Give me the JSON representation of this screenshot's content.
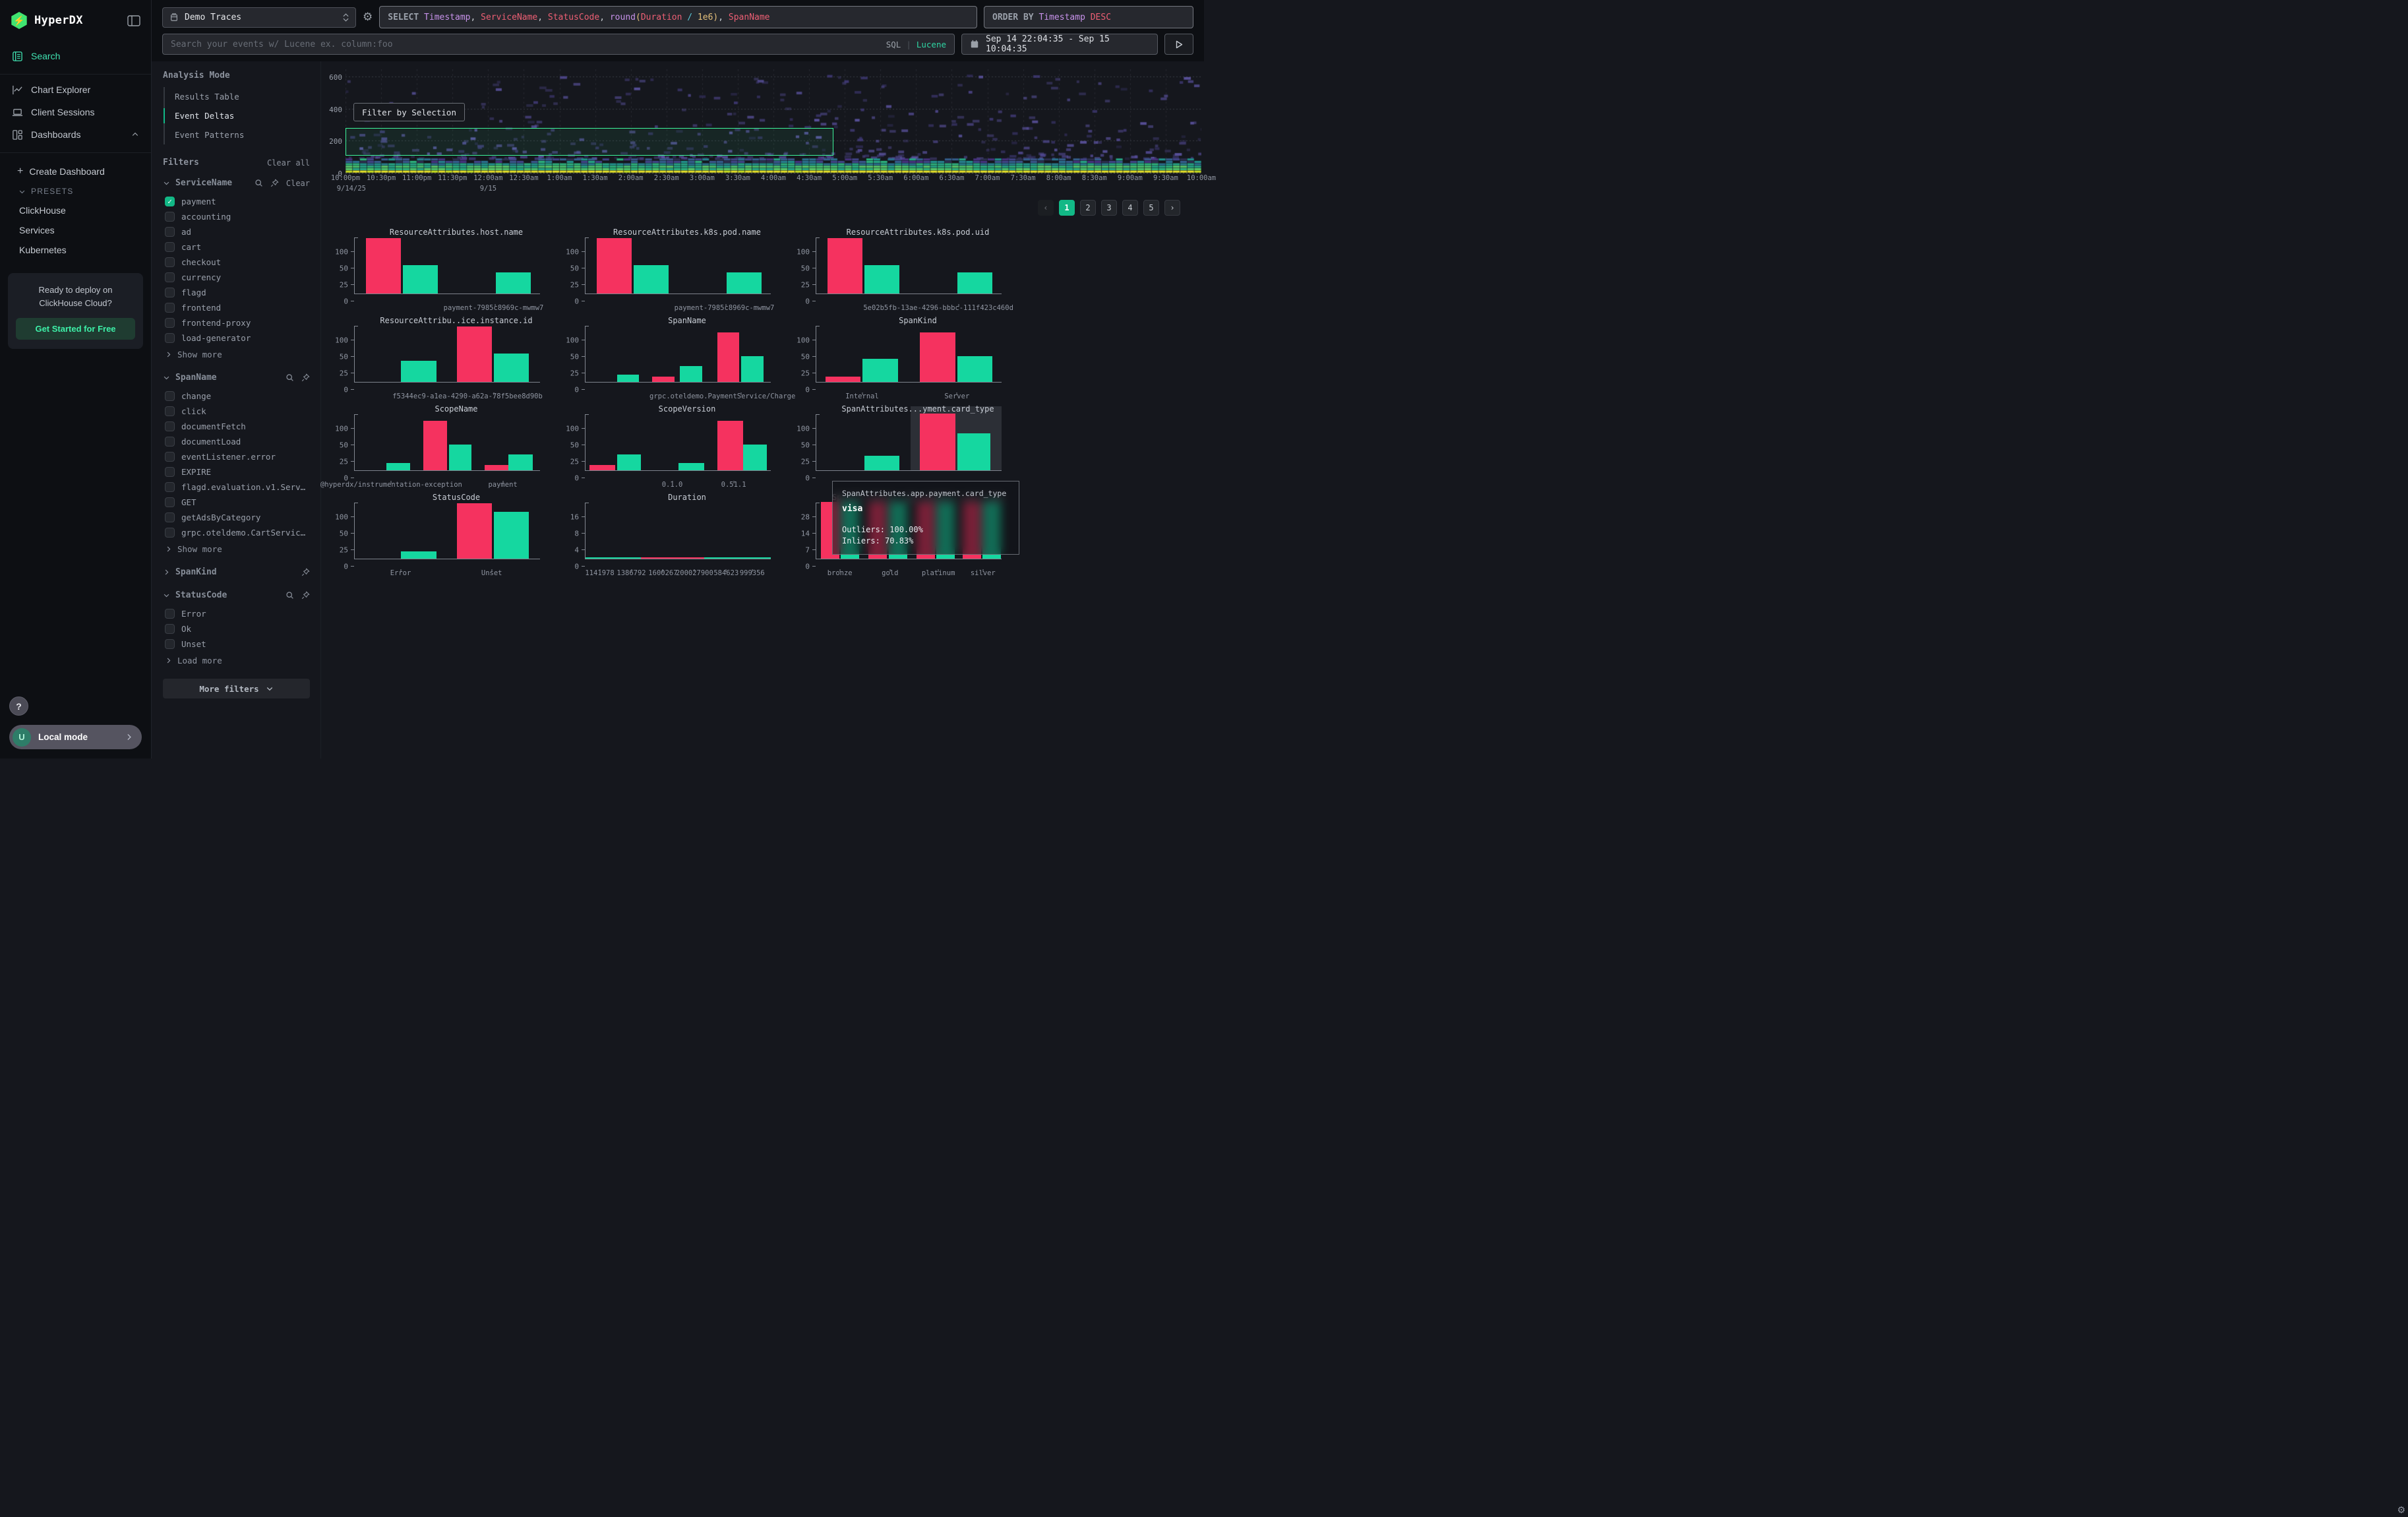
{
  "app": {
    "brand": "HyperDX"
  },
  "colors": {
    "accent": "#12b886",
    "logo_green": "#40e470",
    "bar_pink": "#f5325f",
    "bar_green": "#15d7a0",
    "selection_green": "#3ef59b"
  },
  "sidebar": {
    "nav": [
      {
        "label": "Search",
        "active": true
      },
      {
        "label": "Chart Explorer",
        "active": false
      },
      {
        "label": "Client Sessions",
        "active": false
      },
      {
        "label": "Dashboards",
        "active": false
      }
    ],
    "create_dashboard": "Create Dashboard",
    "presets_label": "PRESETS",
    "presets": [
      "ClickHouse",
      "Services",
      "Kubernetes"
    ],
    "promo": {
      "line1": "Ready to deploy on",
      "line2": "ClickHouse Cloud?",
      "cta": "Get Started for Free"
    },
    "help": "?",
    "user_initial": "U",
    "mode": "Local mode"
  },
  "topbar": {
    "source": "Demo Traces",
    "sql_tokens": [
      [
        "SELECT ",
        "kw"
      ],
      [
        "Timestamp",
        "id"
      ],
      [
        ", ",
        "pl"
      ],
      [
        "ServiceName",
        "col"
      ],
      [
        ", ",
        "pl"
      ],
      [
        "StatusCode",
        "col"
      ],
      [
        ", ",
        "pl"
      ],
      [
        "round",
        "id"
      ],
      [
        "(",
        "br"
      ],
      [
        "Duration",
        "col"
      ],
      [
        " ",
        "pl"
      ],
      [
        "/",
        "op"
      ],
      [
        " ",
        "pl"
      ],
      [
        "1e6",
        "num"
      ],
      [
        ")",
        "br"
      ],
      [
        ", ",
        "pl"
      ],
      [
        "SpanName",
        "col"
      ]
    ],
    "order_tokens": [
      [
        "ORDER BY ",
        "kw"
      ],
      [
        "Timestamp",
        "id"
      ],
      [
        " ",
        "pl"
      ],
      [
        "DESC",
        "col"
      ]
    ],
    "search": {
      "placeholder": "Search your events w/ Lucene ex. column:foo",
      "sql": "SQL",
      "divider": "|",
      "lucene": "Lucene"
    },
    "daterange": "Sep 14 22:04:35 - Sep 15 10:04:35"
  },
  "analysis": {
    "title": "Analysis Mode",
    "modes": [
      {
        "label": "Results Table",
        "active": false
      },
      {
        "label": "Event Deltas",
        "active": true
      },
      {
        "label": "Event Patterns",
        "active": false
      }
    ]
  },
  "filters": {
    "title": "Filters",
    "clear_all": "Clear all",
    "more_button": "More filters",
    "groups": [
      {
        "name": "ServiceName",
        "expanded": true,
        "search": true,
        "pin": true,
        "clear": "Clear",
        "items": [
          {
            "label": "payment",
            "checked": true
          },
          {
            "label": "accounting",
            "checked": false
          },
          {
            "label": "ad",
            "checked": false
          },
          {
            "label": "cart",
            "checked": false
          },
          {
            "label": "checkout",
            "checked": false
          },
          {
            "label": "currency",
            "checked": false
          },
          {
            "label": "flagd",
            "checked": false
          },
          {
            "label": "frontend",
            "checked": false
          },
          {
            "label": "frontend-proxy",
            "checked": false
          },
          {
            "label": "load-generator",
            "checked": false
          }
        ],
        "more": "Show more"
      },
      {
        "name": "SpanName",
        "expanded": true,
        "search": true,
        "pin": true,
        "clear": null,
        "items": [
          {
            "label": "change",
            "checked": false
          },
          {
            "label": "click",
            "checked": false
          },
          {
            "label": "documentFetch",
            "checked": false
          },
          {
            "label": "documentLoad",
            "checked": false
          },
          {
            "label": "eventListener.error",
            "checked": false
          },
          {
            "label": "EXPIRE",
            "checked": false
          },
          {
            "label": "flagd.evaluation.v1.Serv…",
            "checked": false
          },
          {
            "label": "GET",
            "checked": false
          },
          {
            "label": "getAdsByCategory",
            "checked": false
          },
          {
            "label": "grpc.oteldemo.CartServic…",
            "checked": false
          }
        ],
        "more": "Show more"
      },
      {
        "name": "SpanKind",
        "expanded": false,
        "search": false,
        "pin": true,
        "clear": null,
        "items": [],
        "more": null
      },
      {
        "name": "StatusCode",
        "expanded": true,
        "search": true,
        "pin": true,
        "clear": null,
        "items": [
          {
            "label": "Error",
            "checked": false
          },
          {
            "label": "Ok",
            "checked": false
          },
          {
            "label": "Unset",
            "checked": false
          }
        ],
        "more": "Load more"
      }
    ]
  },
  "heatmap": {
    "filter_button": "Filter by Selection",
    "yticks": [
      "600",
      "400",
      "200",
      "0"
    ],
    "y_max": 650,
    "xticks": [
      "10:00pm",
      "10:30pm",
      "11:00pm",
      "11:30pm",
      "12:00am",
      "12:30am",
      "1:00am",
      "1:30am",
      "2:00am",
      "2:30am",
      "3:00am",
      "3:30am",
      "4:00am",
      "4:30am",
      "5:00am",
      "5:30am",
      "6:00am",
      "6:30am",
      "7:00am",
      "7:30am",
      "8:00am",
      "8:30am",
      "9:00am",
      "9:30am",
      "10:00am"
    ],
    "dates": [
      {
        "t": "9/14/25",
        "p": 0
      },
      {
        "t": "9/15",
        "p": 16.67
      }
    ],
    "selection": {
      "y_from": 110,
      "y_to": 285,
      "x_from_pct": 0,
      "x_to_pct": 57
    }
  },
  "pagination": {
    "prev": "‹",
    "pages": [
      "1",
      "2",
      "3",
      "4",
      "5"
    ],
    "active": "1",
    "next": "›"
  },
  "tooltip": {
    "title": "SpanAttributes.app.payment.card_type",
    "value": "visa",
    "outliers": "Outliers: 100.00%",
    "inliers": "Inliers: 70.83%"
  },
  "chart_data": {
    "type": "dashboard",
    "legend": {
      "pink": "Outliers",
      "green": "Inliers"
    },
    "note": "mini bar charts: y ticks evenly spaced (sqrt-like scale); bar h = fraction of the top tick height; bars = [leftPct, widthPct, color, h]",
    "heatmap": {
      "type": "heatmap",
      "x_start": "9/14/25 10:00pm",
      "x_end": "9/15 10:00am",
      "x_interval": "30m",
      "y_ticks": [
        0,
        200,
        400,
        600
      ],
      "y_max": 650,
      "pattern": "dense viridis band for values 0-95 with solid yellow row at 0; sparse purple cells scattered above up to ~600",
      "selection": {
        "y_from": 110,
        "y_to": 285,
        "x_from_pct": 0,
        "x_to_pct": 57
      }
    },
    "mini": [
      {
        "title": "ResourceAttributes.host.name",
        "yticks": [
          "0",
          "25",
          "50",
          "100"
        ],
        "bars": [
          [
            6,
            19,
            "p",
            1.12
          ],
          [
            26,
            19,
            "g",
            0.57
          ],
          [
            76,
            19,
            "g",
            0.43
          ]
        ],
        "xlabels": [
          [
            "payment-7985c8969c-mwmw7",
            75,
            76
          ]
        ]
      },
      {
        "title": "ResourceAttributes.k8s.pod.name",
        "yticks": [
          "0",
          "25",
          "50",
          "100"
        ],
        "bars": [
          [
            6,
            19,
            "p",
            1.12
          ],
          [
            26,
            19,
            "g",
            0.57
          ],
          [
            76,
            19,
            "g",
            0.43
          ]
        ],
        "xlabels": [
          [
            "payment-7985c8969c-mwmw7",
            75,
            76
          ]
        ]
      },
      {
        "title": "ResourceAttributes.k8s.pod.uid",
        "yticks": [
          "0",
          "25",
          "50",
          "100"
        ],
        "bars": [
          [
            6,
            19,
            "p",
            1.12
          ],
          [
            26,
            19,
            "g",
            0.57
          ],
          [
            76,
            19,
            "g",
            0.43
          ]
        ],
        "xlabels": [
          [
            "5e02b5fb-13ae-4296-bbbc-111f423c460d",
            66,
            77
          ]
        ]
      },
      {
        "title": "ResourceAttribu..ice.instance.id",
        "yticks": [
          "0",
          "25",
          "50",
          "100"
        ],
        "bars": [
          [
            25,
            19,
            "g",
            0.43
          ],
          [
            55,
            19,
            "p",
            1.12
          ],
          [
            75,
            19,
            "g",
            0.57
          ]
        ],
        "xlabels": [
          [
            "f5344ec9-a1ea-4290-a62a-78f5bee8d90b",
            61,
            75
          ]
        ]
      },
      {
        "title": "SpanName",
        "yticks": [
          "0",
          "25",
          "50",
          "100"
        ],
        "bars": [
          [
            17,
            12,
            "g",
            0.15
          ],
          [
            36,
            12,
            "p",
            0.11
          ],
          [
            51,
            12,
            "g",
            0.32
          ],
          [
            71,
            12,
            "p",
            1.0
          ],
          [
            84,
            12,
            "g",
            0.52
          ]
        ],
        "xlabels": [
          [
            "grpc.oteldemo.PaymentService/Charge",
            74,
            84
          ]
        ]
      },
      {
        "title": "SpanKind",
        "yticks": [
          "0",
          "25",
          "50",
          "100"
        ],
        "bars": [
          [
            5,
            19,
            "p",
            0.11
          ],
          [
            25,
            19,
            "g",
            0.47
          ],
          [
            56,
            19,
            "p",
            1.0
          ],
          [
            76,
            19,
            "g",
            0.52
          ]
        ],
        "xlabels": [
          [
            "Internal",
            25
          ],
          [
            "Server",
            76
          ]
        ]
      },
      {
        "title": "ScopeName",
        "yticks": [
          "0",
          "25",
          "50",
          "100"
        ],
        "bars": [
          [
            17,
            13,
            "g",
            0.15
          ],
          [
            37,
            13,
            "p",
            1.0
          ],
          [
            51,
            12,
            "g",
            0.52
          ],
          [
            70,
            13,
            "p",
            0.11
          ],
          [
            83,
            13,
            "g",
            0.32
          ]
        ],
        "xlabels": [
          [
            "@hyperdx/instrumentation-exception",
            20
          ],
          [
            "payment",
            80
          ]
        ]
      },
      {
        "title": "ScopeVersion",
        "yticks": [
          "0",
          "25",
          "50",
          "100"
        ],
        "bars": [
          [
            2,
            14,
            "p",
            0.11
          ],
          [
            17,
            13,
            "g",
            0.32
          ],
          [
            50,
            14,
            "g",
            0.15
          ],
          [
            71,
            14,
            "p",
            1.0
          ],
          [
            85,
            13,
            "g",
            0.52
          ]
        ],
        "xlabels": [
          [
            "0.1.0",
            47
          ],
          [
            "0.51.1",
            80
          ]
        ]
      },
      {
        "title": "SpanAttributes...yment.card_type",
        "yticks": [
          "0",
          "25",
          "50",
          "100"
        ],
        "bars": [
          [
            26,
            19,
            "g",
            0.29
          ],
          [
            56,
            19,
            "p",
            1.15
          ],
          [
            76,
            18,
            "g",
            0.75
          ]
        ],
        "highlight": [
          51,
          49
        ],
        "xlabels": []
      },
      {
        "title": "StatusCode",
        "yticks": [
          "0",
          "25",
          "50",
          "100"
        ],
        "bars": [
          [
            25,
            19,
            "g",
            0.15
          ],
          [
            55,
            19,
            "p",
            1.12
          ],
          [
            75,
            19,
            "g",
            0.95
          ]
        ],
        "xlabels": [
          [
            "Error",
            25
          ],
          [
            "Unset",
            74
          ]
        ]
      },
      {
        "title": "Duration",
        "yticks": [
          "0",
          "4",
          "8",
          "16"
        ],
        "bars": [],
        "flat": [
          [
            "g",
            0,
            30
          ],
          [
            "p",
            30,
            64
          ],
          [
            "g",
            64,
            100
          ]
        ],
        "xlabels": [
          [
            "1141978",
            8
          ],
          [
            "1386792",
            25
          ],
          [
            "1600267",
            42
          ],
          [
            "200027900",
            59
          ],
          [
            "584623",
            76
          ],
          [
            "999356",
            90
          ]
        ]
      },
      {
        "title": "SpanAttributes.app.payment.card_type",
        "yticks": [
          "0",
          "7",
          "14",
          "28"
        ],
        "bars": [
          [
            2.4,
            10,
            "p",
            1.3
          ],
          [
            13,
            10,
            "g",
            1.3
          ],
          [
            28,
            10,
            "p",
            1.3
          ],
          [
            39,
            10,
            "g",
            1.3
          ],
          [
            54,
            10,
            "p",
            1.3
          ],
          [
            64.6,
            10,
            "g",
            1.3
          ],
          [
            79,
            10,
            "p",
            1.3
          ],
          [
            89.8,
            10,
            "g",
            1.3
          ]
        ],
        "xlabels": [
          [
            "bronze",
            13
          ],
          [
            "gold",
            40
          ],
          [
            "platinum",
            66
          ],
          [
            "silver",
            90
          ]
        ]
      }
    ]
  }
}
